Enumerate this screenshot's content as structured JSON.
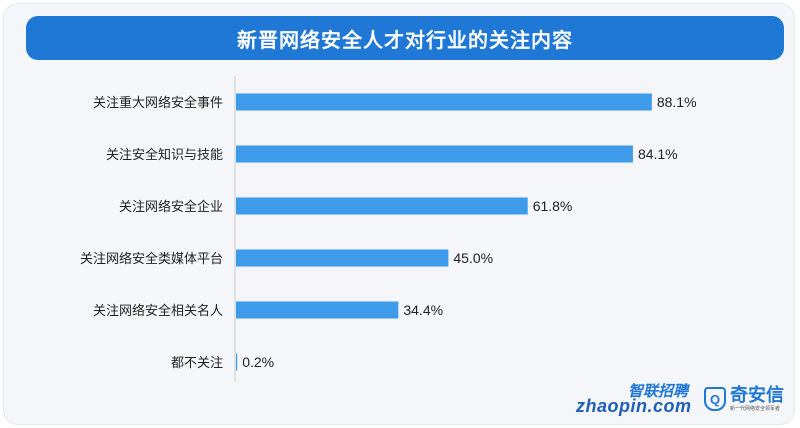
{
  "colors": {
    "accent": "#1f77d6",
    "bar": "#3d9be9",
    "background": "#f4f6f9"
  },
  "logos": {
    "zhaopin_cn": "智联招聘",
    "zhaopin_en": "zhaopin.com",
    "qax_icon_letter": "Q",
    "qax_name": "奇安信",
    "qax_tagline": "新一代网络安全领军者"
  },
  "chart_data": {
    "type": "bar",
    "orientation": "horizontal",
    "title": "新晋网络安全人才对行业的关注内容",
    "categories": [
      "关注重大网络安全事件",
      "关注安全知识与技能",
      "关注网络安全企业",
      "关注网络安全类媒体平台",
      "关注网络安全相关名人",
      "都不关注"
    ],
    "values": [
      88.1,
      84.1,
      61.8,
      45.0,
      34.4,
      0.2
    ],
    "value_labels": [
      "88.1%",
      "84.1%",
      "61.8%",
      "45.0%",
      "34.4%",
      "0.2%"
    ],
    "xlim": [
      0,
      100
    ],
    "grid": false,
    "legend": "none"
  }
}
